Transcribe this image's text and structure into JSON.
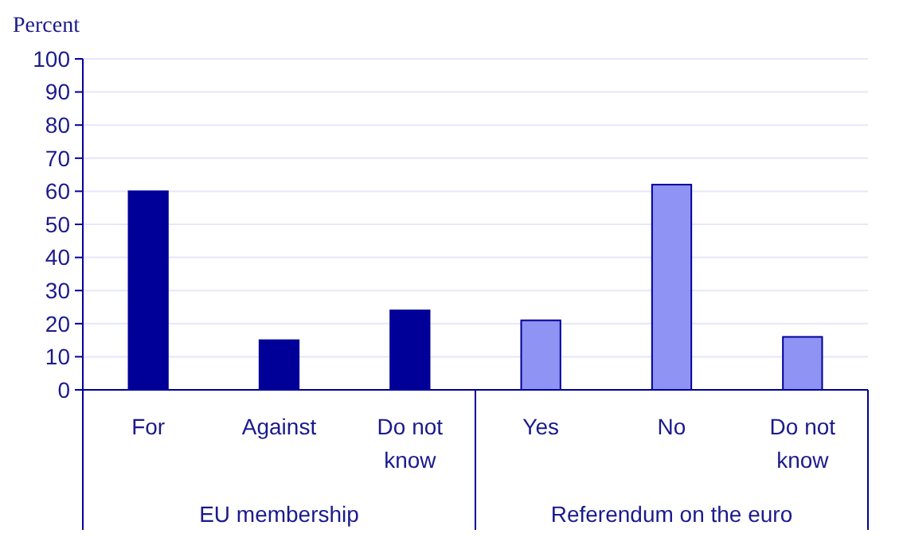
{
  "chart_data": {
    "type": "bar",
    "ylabel": "Percent",
    "categories": [
      "For",
      "Against",
      "Do not know",
      "Yes",
      "No",
      "Do not know"
    ],
    "values": [
      60,
      15,
      24,
      21,
      62,
      16
    ],
    "colors": [
      "#000099",
      "#000099",
      "#000099",
      "#8f94f4",
      "#8f94f4",
      "#8f94f4"
    ],
    "ylim": [
      0,
      100
    ],
    "yticks": [
      0,
      10,
      20,
      30,
      40,
      50,
      60,
      70,
      80,
      90,
      100
    ],
    "grid": "y",
    "annotations": [
      "EU membership",
      "Referendum on the euro"
    ]
  }
}
